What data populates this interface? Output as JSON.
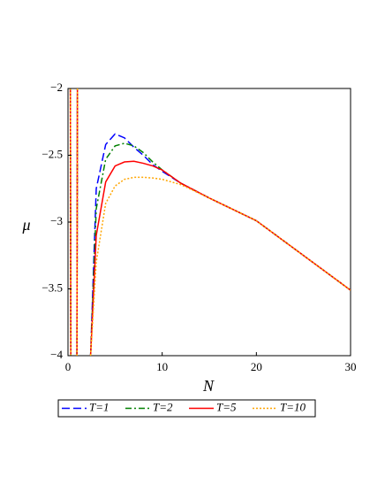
{
  "chart_data": {
    "type": "line",
    "x_label": "N",
    "y_label": "μ",
    "x": [
      0.25,
      0.3,
      0.6,
      0.95,
      1.0,
      1.6,
      2.4,
      3,
      4,
      5,
      6,
      7,
      8,
      9,
      10,
      12,
      15,
      20,
      25,
      30
    ],
    "series": [
      {
        "name": "T=1",
        "color": "#0000ff",
        "dash": "dashed",
        "values": [
          -2,
          -4,
          null,
          -4,
          -2,
          null,
          -4,
          -2.75,
          -2.42,
          -2.34,
          -2.37,
          -2.44,
          -2.5,
          -2.57,
          -2.62,
          -2.71,
          -2.82,
          -2.99,
          -3.25,
          -3.51
        ]
      },
      {
        "name": "T=2",
        "color": "#008000",
        "dash": "dashdot",
        "values": [
          -2,
          -4,
          null,
          -4,
          -2,
          null,
          -4,
          -2.9,
          -2.53,
          -2.43,
          -2.41,
          -2.43,
          -2.48,
          -2.55,
          -2.61,
          -2.71,
          -2.82,
          -2.99,
          -3.25,
          -3.51
        ]
      },
      {
        "name": "T=5",
        "color": "#ff0000",
        "dash": "solid",
        "values": [
          -2,
          -4,
          null,
          -4,
          -2,
          null,
          -4,
          -3.1,
          -2.7,
          -2.58,
          -2.55,
          -2.545,
          -2.56,
          -2.58,
          -2.61,
          -2.71,
          -2.82,
          -2.99,
          -3.25,
          -3.51
        ]
      },
      {
        "name": "T=10",
        "color": "#ffa500",
        "dash": "dotted",
        "values": [
          -2,
          -4,
          null,
          -4,
          -2,
          null,
          -4,
          -3.3,
          -2.86,
          -2.73,
          -2.68,
          -2.665,
          -2.665,
          -2.67,
          -2.68,
          -2.72,
          -2.82,
          -2.99,
          -3.25,
          -3.51
        ]
      }
    ],
    "xlim": [
      0,
      30
    ],
    "xticks": [
      0,
      10,
      20,
      30
    ],
    "ylim": [
      -4,
      -2
    ],
    "yticks": [
      {
        "value": -4,
        "label": "−4"
      },
      {
        "value": -3.5,
        "label": "−3.5"
      },
      {
        "value": -3,
        "label": "−3"
      },
      {
        "value": -2.5,
        "label": "−2.5"
      },
      {
        "value": -2,
        "label": "−2"
      }
    ],
    "legend": "bottom"
  }
}
